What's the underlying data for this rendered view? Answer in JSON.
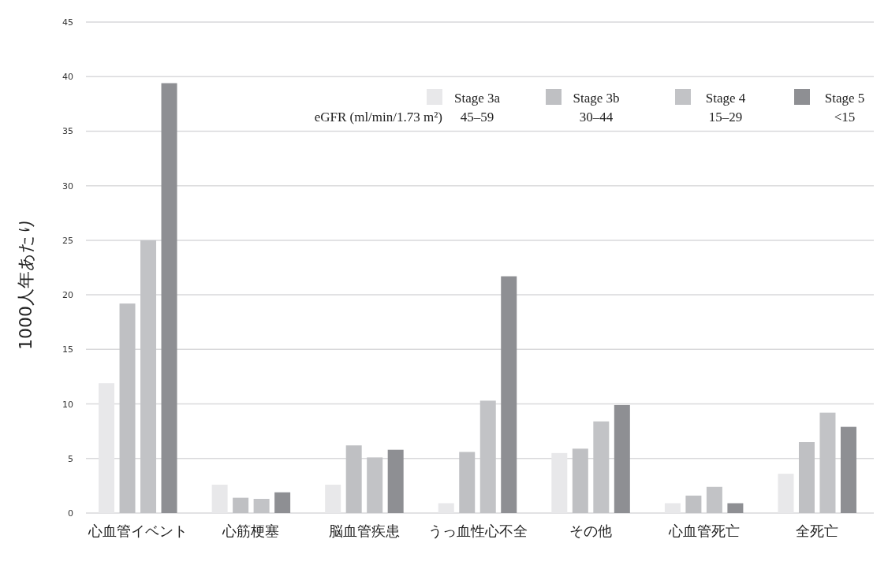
{
  "chart_data": {
    "type": "bar",
    "ylabel": "1000人年あたり",
    "legend_title": "eGFR (ml/min/1.73 m²)",
    "categories": [
      "心血管イベント",
      "心筋梗塞",
      "脳血管疾患",
      "うっ血性心不全",
      "その他",
      "心血管死亡",
      "全死亡"
    ],
    "series": [
      {
        "name": "Stage 3a\n45–59",
        "color": "#e8e8ea",
        "values": [
          11.9,
          2.6,
          2.6,
          0.9,
          5.5,
          0.9,
          3.6
        ]
      },
      {
        "name": "Stage 3b\n30–44",
        "color": "#bfc0c3",
        "values": [
          19.2,
          1.4,
          6.2,
          5.6,
          5.9,
          1.6,
          6.5
        ]
      },
      {
        "name": "Stage 4\n15–29",
        "color": "#c2c3c6",
        "values": [
          25.0,
          1.3,
          5.1,
          10.3,
          8.4,
          2.4,
          9.2
        ]
      },
      {
        "name": "Stage 5\n<15",
        "color": "#8e8f93",
        "values": [
          39.4,
          1.9,
          5.8,
          21.7,
          9.9,
          0.9,
          7.9
        ]
      }
    ],
    "ylim": [
      0,
      45
    ],
    "yticks": [
      0,
      5,
      10,
      15,
      20,
      25,
      30,
      35,
      40,
      45
    ],
    "grid": "y",
    "legend": "top right"
  }
}
